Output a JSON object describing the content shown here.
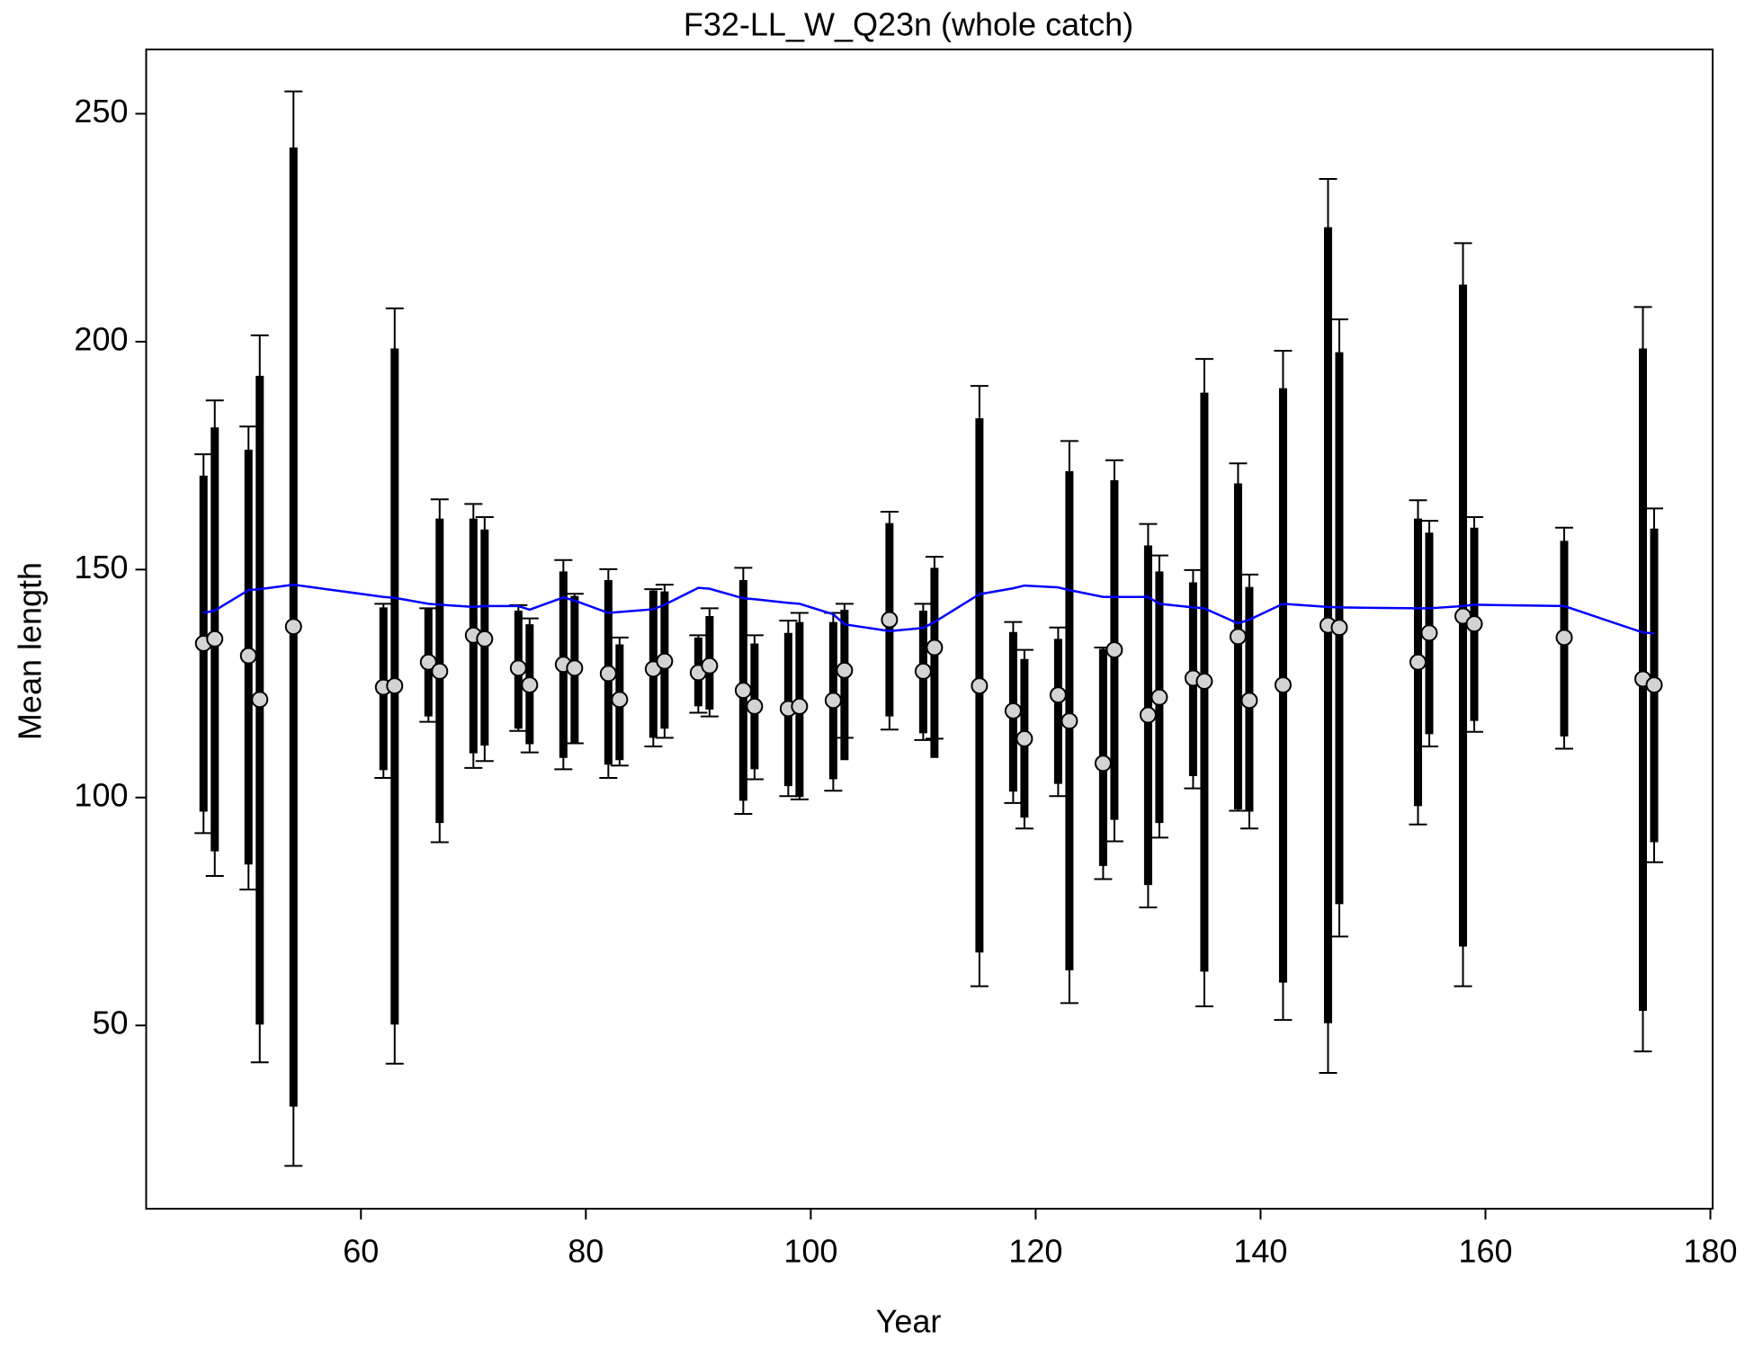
{
  "chart_data": {
    "type": "errorbar",
    "title": "F32-LL_W_Q23n (whole catch)",
    "xlabel": "Year",
    "ylabel": "Mean length",
    "xlim": [
      40.9,
      180.2
    ],
    "ylim": [
      9.8,
      264.1
    ],
    "xticks": [
      60,
      80,
      100,
      120,
      140,
      160,
      180
    ],
    "yticks": [
      50,
      100,
      150,
      200,
      250
    ],
    "x": [
      46,
      47,
      50,
      51,
      54,
      62,
      63,
      66,
      67,
      70,
      71,
      74,
      75,
      78,
      79,
      82,
      83,
      86,
      87,
      90,
      91,
      94,
      95,
      98,
      99,
      102,
      103,
      107,
      110,
      111,
      115,
      118,
      119,
      122,
      123,
      126,
      127,
      130,
      131,
      134,
      135,
      138,
      139,
      142,
      146,
      147,
      154,
      155,
      158,
      159,
      167,
      174,
      175
    ],
    "points": {
      "color": "#d3d3d3",
      "values": [
        133.8,
        134.8,
        131.1,
        121.5,
        137.5,
        124.2,
        124.5,
        129.7,
        127.7,
        135.6,
        134.8,
        128.4,
        124.7,
        129.2,
        128.4,
        127.2,
        121.5,
        128.2,
        129.9,
        127.4,
        128.9,
        123.5,
        120.0,
        119.5,
        120.0,
        121.3,
        127.9,
        139.0,
        127.7,
        132.9,
        124.5,
        119.0,
        112.9,
        122.5,
        116.8,
        107.5,
        132.4,
        118.1,
        122.0,
        126.2,
        125.5,
        135.3,
        121.3,
        124.7,
        137.8,
        137.3,
        129.7,
        136.1,
        139.8,
        138.1,
        135.1,
        126.0,
        124.7
      ]
    },
    "inner": {
      "low": [
        96.9,
        88.2,
        85.3,
        50.2,
        32.2,
        106.0,
        50.2,
        117.8,
        94.4,
        109.7,
        111.4,
        115.1,
        111.7,
        108.7,
        112.1,
        107.2,
        108.2,
        113.1,
        115.1,
        120.0,
        119.3,
        99.3,
        106.2,
        102.5,
        100.1,
        104.0,
        108.2,
        117.8,
        114.1,
        108.7,
        66.0,
        101.3,
        95.6,
        103.0,
        62.1,
        85.0,
        95.1,
        80.8,
        94.4,
        104.7,
        61.8,
        97.4,
        96.9,
        59.4,
        50.5,
        76.6,
        98.1,
        113.9,
        67.3,
        116.8,
        113.4,
        53.2,
        90.2
      ],
      "high": [
        170.6,
        181.2,
        176.3,
        192.5,
        242.6,
        141.7,
        198.5,
        141.5,
        161.2,
        161.2,
        158.8,
        141.0,
        138.0,
        149.6,
        144.2,
        147.7,
        133.6,
        145.4,
        145.2,
        135.1,
        139.8,
        147.7,
        133.8,
        136.1,
        138.5,
        138.5,
        141.2,
        160.2,
        141.0,
        150.4,
        183.2,
        136.3,
        130.4,
        134.8,
        171.6,
        132.6,
        169.6,
        155.3,
        149.6,
        147.2,
        188.8,
        168.9,
        146.2,
        189.8,
        225.1,
        197.7,
        161.2,
        158.1,
        212.5,
        159.2,
        156.3,
        198.5,
        159.0
      ]
    },
    "outer": {
      "low": [
        92.2,
        82.8,
        79.8,
        41.9,
        19.2,
        104.3,
        41.6,
        116.6,
        90.2,
        106.5,
        108.0,
        114.6,
        109.9,
        106.2,
        111.9,
        104.3,
        107.0,
        111.2,
        113.1,
        118.6,
        117.8,
        96.4,
        104.0,
        100.3,
        99.6,
        101.5,
        113.1,
        114.9,
        112.6,
        112.9,
        58.6,
        98.8,
        93.2,
        100.3,
        54.9,
        82.1,
        90.4,
        75.9,
        91.2,
        102.0,
        54.2,
        97.1,
        93.2,
        51.2,
        39.6,
        69.5,
        94.1,
        111.2,
        58.6,
        114.4,
        110.7,
        44.3,
        85.8
      ],
      "high": [
        175.3,
        187.1,
        181.4,
        201.4,
        254.9,
        142.5,
        207.3,
        141.5,
        165.4,
        164.4,
        161.5,
        142.2,
        139.3,
        152.1,
        144.7,
        150.1,
        135.1,
        145.7,
        146.7,
        135.6,
        141.5,
        150.4,
        135.6,
        138.8,
        140.5,
        140.5,
        142.5,
        162.7,
        142.5,
        152.8,
        190.3,
        138.5,
        132.4,
        137.3,
        178.2,
        132.9,
        174.0,
        160.0,
        153.1,
        149.9,
        196.2,
        173.3,
        148.9,
        198.0,
        235.7,
        204.9,
        165.2,
        160.7,
        221.6,
        161.5,
        159.2,
        207.6,
        163.4
      ]
    },
    "fit": {
      "color": "#0000ff",
      "values": [
        140.5,
        141.0,
        145.5,
        145.7,
        146.7,
        144.0,
        143.8,
        142.5,
        142.3,
        141.8,
        142.0,
        142.0,
        141.2,
        143.9,
        143.2,
        140.5,
        140.7,
        141.3,
        142.3,
        146.0,
        145.8,
        143.7,
        143.5,
        142.7,
        142.5,
        140.2,
        138.0,
        136.5,
        137.2,
        138.5,
        144.6,
        145.9,
        146.5,
        146.1,
        145.5,
        144.0,
        144.0,
        144.0,
        142.5,
        141.7,
        141.5,
        138.2,
        139.0,
        142.5,
        141.8,
        141.7,
        141.5,
        141.5,
        142.0,
        142.3,
        142.0,
        136.2,
        136.0
      ]
    }
  }
}
